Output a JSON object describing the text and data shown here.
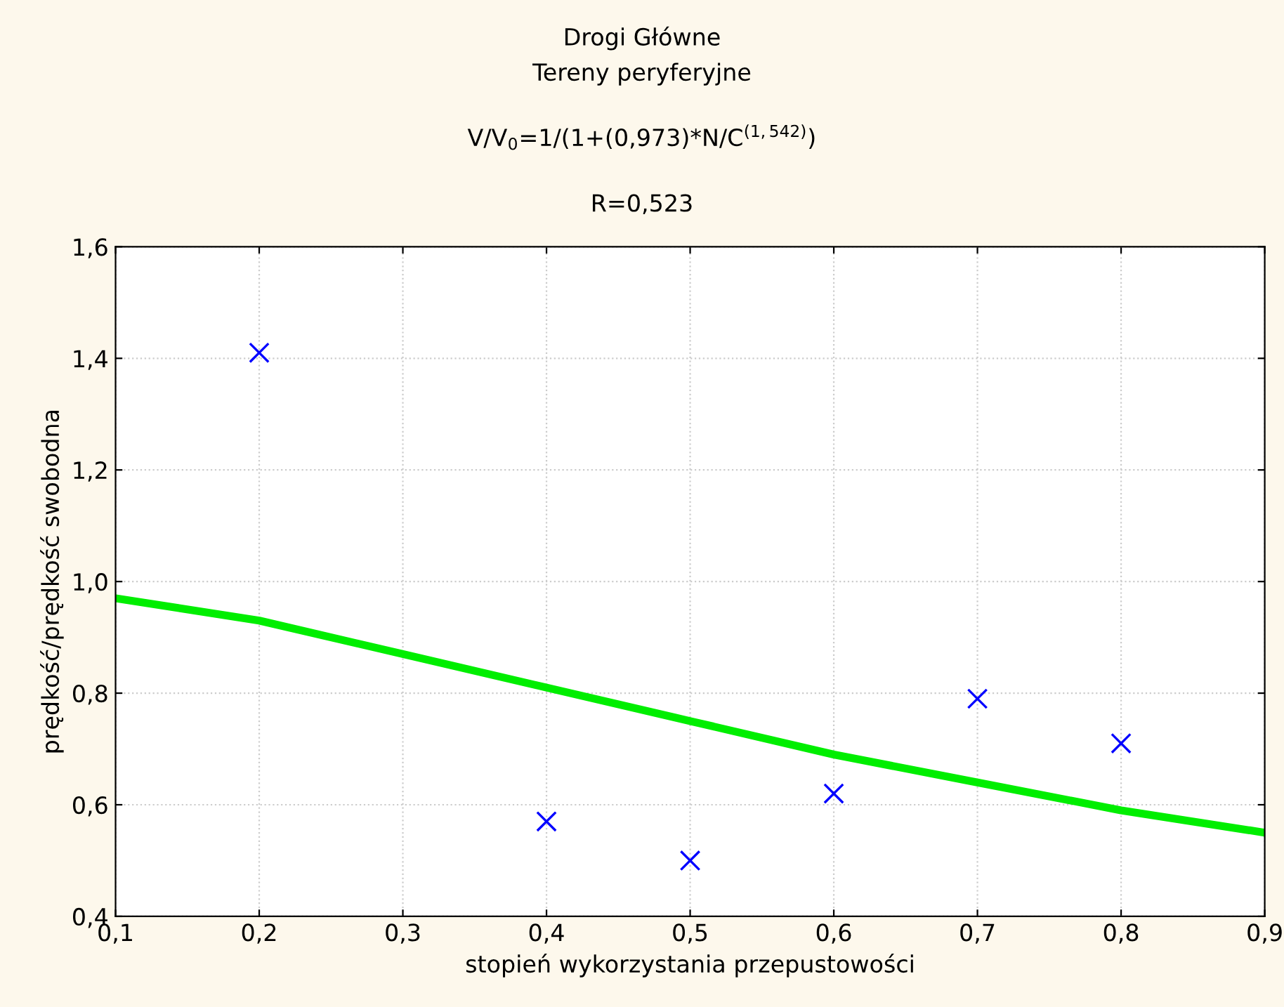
{
  "chart_data": {
    "type": "scatter",
    "title": "Drogi Główne",
    "subtitle": "Tereny peryferyjne",
    "annotations": [
      "V/V$_{0}$=1/(1+(0,973)*N/C$^{(1,542)}$)",
      "R=0,523"
    ],
    "xlabel": "stopień wykorzystania przepustowości",
    "ylabel": "prędkość/prędkość swobodna",
    "series": [
      {
        "color": "#0000ff",
        "marker": "cross",
        "x": [
          0.2,
          0.4,
          0.5,
          0.6,
          0.7,
          0.8
        ],
        "values": [
          1.41,
          0.57,
          0.5,
          0.62,
          0.79,
          0.71
        ]
      },
      {
        "type": "line",
        "color": "#00ee00",
        "marker": "none",
        "line_style": "solid",
        "x": [
          0.1,
          0.2,
          0.3,
          0.4,
          0.5,
          0.6,
          0.7,
          0.8,
          0.9
        ],
        "values": [
          0.97,
          0.93,
          0.87,
          0.81,
          0.75,
          0.69,
          0.64,
          0.59,
          0.55
        ]
      }
    ],
    "xlim": [
      0.1,
      0.9
    ],
    "ylim": [
      0.4,
      1.6
    ],
    "xticks": [
      {
        "value": 0.1,
        "label": "0,1"
      },
      {
        "value": 0.2,
        "label": "0,2"
      },
      {
        "value": 0.3,
        "label": "0,3"
      },
      {
        "value": 0.4,
        "label": "0,4"
      },
      {
        "value": 0.5,
        "label": "0,5"
      },
      {
        "value": 0.6,
        "label": "0,6"
      },
      {
        "value": 0.7,
        "label": "0,7"
      },
      {
        "value": 0.8,
        "label": "0,8"
      },
      {
        "value": 0.9,
        "label": "0,9"
      }
    ],
    "yticks": [
      {
        "value": 0.4,
        "label": "0,4"
      },
      {
        "value": 0.6,
        "label": "0,6"
      },
      {
        "value": 0.8,
        "label": "0,8"
      },
      {
        "value": 1.0,
        "label": "1,0"
      },
      {
        "value": 1.2,
        "label": "1,2"
      },
      {
        "value": 1.4,
        "label": "1,4"
      },
      {
        "value": 1.6,
        "label": "1,6"
      }
    ],
    "grid": true
  }
}
